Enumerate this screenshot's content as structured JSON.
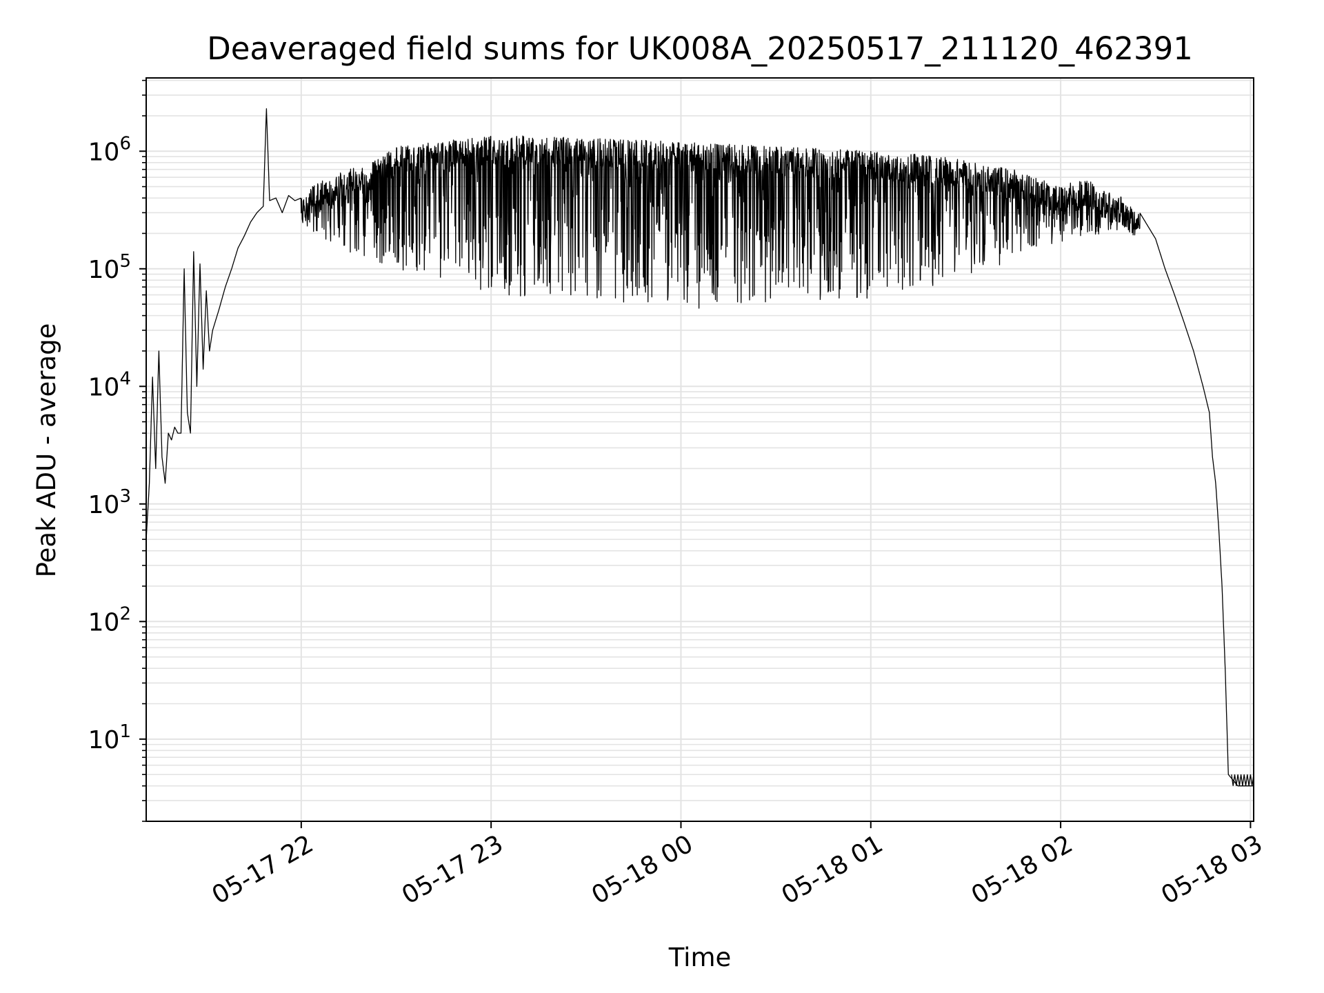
{
  "chart_data": {
    "type": "line",
    "title": "Deaveraged field sums for UK008A_20250517_211120_462391",
    "xlabel": "Time",
    "ylabel": "Peak ADU - average",
    "yscale": "log",
    "grid": true,
    "line_color": "#000000",
    "grid_color": "#e3e3e3",
    "xlim": [
      "2025-05-17 21:11",
      "2025-05-18 03:01"
    ],
    "ylim": [
      2,
      4200000
    ],
    "x_ticks": [
      {
        "t": "2025-05-17 22:00",
        "label": "05-17 22"
      },
      {
        "t": "2025-05-17 23:00",
        "label": "05-17 23"
      },
      {
        "t": "2025-05-18 00:00",
        "label": "05-18 00"
      },
      {
        "t": "2025-05-18 01:00",
        "label": "05-18 01"
      },
      {
        "t": "2025-05-18 02:00",
        "label": "05-18 02"
      },
      {
        "t": "2025-05-18 03:00",
        "label": "05-18 03"
      }
    ],
    "y_ticks": [
      {
        "value": 10,
        "base": "10",
        "exp": "1"
      },
      {
        "value": 100,
        "base": "10",
        "exp": "2"
      },
      {
        "value": 1000,
        "base": "10",
        "exp": "3"
      },
      {
        "value": 10000,
        "base": "10",
        "exp": "4"
      },
      {
        "value": 100000,
        "base": "10",
        "exp": "5"
      },
      {
        "value": 1000000,
        "base": "10",
        "exp": "6"
      }
    ],
    "series": [
      {
        "values": [
          [
            "2025-05-17 21:11",
            500
          ],
          [
            "2025-05-17 21:12",
            1500
          ],
          [
            "2025-05-17 21:13",
            12000
          ],
          [
            "2025-05-17 21:14",
            2000
          ],
          [
            "2025-05-17 21:15",
            20000
          ],
          [
            "2025-05-17 21:16",
            2500
          ],
          [
            "2025-05-17 21:17",
            1500
          ],
          [
            "2025-05-17 21:18",
            4000
          ],
          [
            "2025-05-17 21:19",
            3500
          ],
          [
            "2025-05-17 21:20",
            4500
          ],
          [
            "2025-05-17 21:21",
            4000
          ],
          [
            "2025-05-17 21:22",
            4000
          ],
          [
            "2025-05-17 21:23",
            100000
          ],
          [
            "2025-05-17 21:24",
            6000
          ],
          [
            "2025-05-17 21:25",
            4000
          ],
          [
            "2025-05-17 21:26",
            140000
          ],
          [
            "2025-05-17 21:27",
            10000
          ],
          [
            "2025-05-17 21:28",
            110000
          ],
          [
            "2025-05-17 21:29",
            14000
          ],
          [
            "2025-05-17 21:30",
            65000
          ],
          [
            "2025-05-17 21:31",
            20000
          ],
          [
            "2025-05-17 21:32",
            30000
          ],
          [
            "2025-05-17 21:34",
            45000
          ],
          [
            "2025-05-17 21:36",
            70000
          ],
          [
            "2025-05-17 21:38",
            100000
          ],
          [
            "2025-05-17 21:40",
            150000
          ],
          [
            "2025-05-17 21:42",
            190000
          ],
          [
            "2025-05-17 21:44",
            250000
          ],
          [
            "2025-05-17 21:46",
            300000
          ],
          [
            "2025-05-17 21:48",
            340000
          ],
          [
            "2025-05-17 21:49",
            2300000
          ],
          [
            "2025-05-17 21:50",
            380000
          ],
          [
            "2025-05-17 21:52",
            400000
          ],
          [
            "2025-05-17 21:54",
            300000
          ],
          [
            "2025-05-17 21:56",
            420000
          ],
          [
            "2025-05-17 21:58",
            380000
          ],
          [
            "2025-05-17 22:00",
            400000
          ],
          [
            "2025-05-17 22:03",
            500000
          ],
          [
            "2025-05-17 22:06",
            550000
          ],
          [
            "2025-05-17 22:09",
            600000
          ],
          [
            "2025-05-17 22:12",
            650000
          ],
          [
            "2025-05-17 22:15",
            700000
          ],
          [
            "2025-05-17 22:20",
            750000
          ],
          [
            "2025-05-17 22:25",
            900000
          ],
          [
            "2025-05-17 22:30",
            1100000
          ],
          [
            "2025-05-17 22:40",
            1200000
          ],
          [
            "2025-05-17 22:50",
            1300000
          ],
          [
            "2025-05-17 23:00",
            1350000
          ],
          [
            "2025-05-17 23:15",
            1350000
          ],
          [
            "2025-05-17 23:30",
            1300000
          ],
          [
            "2025-05-17 23:45",
            1250000
          ],
          [
            "2025-05-18 00:00",
            1200000
          ],
          [
            "2025-05-18 00:15",
            1150000
          ],
          [
            "2025-05-18 00:30",
            1100000
          ],
          [
            "2025-05-18 00:45",
            1050000
          ],
          [
            "2025-05-18 01:00",
            1000000
          ],
          [
            "2025-05-18 01:15",
            950000
          ],
          [
            "2025-05-18 01:30",
            850000
          ],
          [
            "2025-05-18 01:45",
            700000
          ],
          [
            "2025-05-18 02:00",
            500000
          ],
          [
            "2025-05-18 02:05",
            600000
          ],
          [
            "2025-05-18 02:10",
            550000
          ],
          [
            "2025-05-18 02:15",
            450000
          ],
          [
            "2025-05-18 02:20",
            400000
          ],
          [
            "2025-05-18 02:25",
            300000
          ],
          [
            "2025-05-18 02:30",
            180000
          ],
          [
            "2025-05-18 02:33",
            100000
          ],
          [
            "2025-05-18 02:36",
            60000
          ],
          [
            "2025-05-18 02:39",
            35000
          ],
          [
            "2025-05-18 02:42",
            20000
          ],
          [
            "2025-05-18 02:45",
            10000
          ],
          [
            "2025-05-18 02:47",
            6000
          ],
          [
            "2025-05-18 02:48",
            2500
          ],
          [
            "2025-05-18 02:49",
            1500
          ],
          [
            "2025-05-18 02:50",
            600
          ],
          [
            "2025-05-18 02:51",
            200
          ],
          [
            "2025-05-18 02:52",
            40
          ],
          [
            "2025-05-18 02:53",
            5
          ],
          [
            "2025-05-18 02:56",
            4
          ],
          [
            "2025-05-18 03:01",
            4
          ]
        ],
        "noise_low": [
          [
            "2025-05-17 22:00",
            250000
          ],
          [
            "2025-05-17 22:10",
            150000
          ],
          [
            "2025-05-17 22:20",
            120000
          ],
          [
            "2025-05-17 22:30",
            100000
          ],
          [
            "2025-05-17 22:45",
            80000
          ],
          [
            "2025-05-17 23:00",
            60000
          ],
          [
            "2025-05-17 23:30",
            55000
          ],
          [
            "2025-05-18 00:00",
            45000
          ],
          [
            "2025-05-18 00:30",
            50000
          ],
          [
            "2025-05-18 01:00",
            55000
          ],
          [
            "2025-05-18 01:30",
            80000
          ],
          [
            "2025-05-18 02:00",
            170000
          ],
          [
            "2025-05-18 02:15",
            200000
          ],
          [
            "2025-05-18 02:25",
            200000
          ]
        ]
      }
    ]
  }
}
